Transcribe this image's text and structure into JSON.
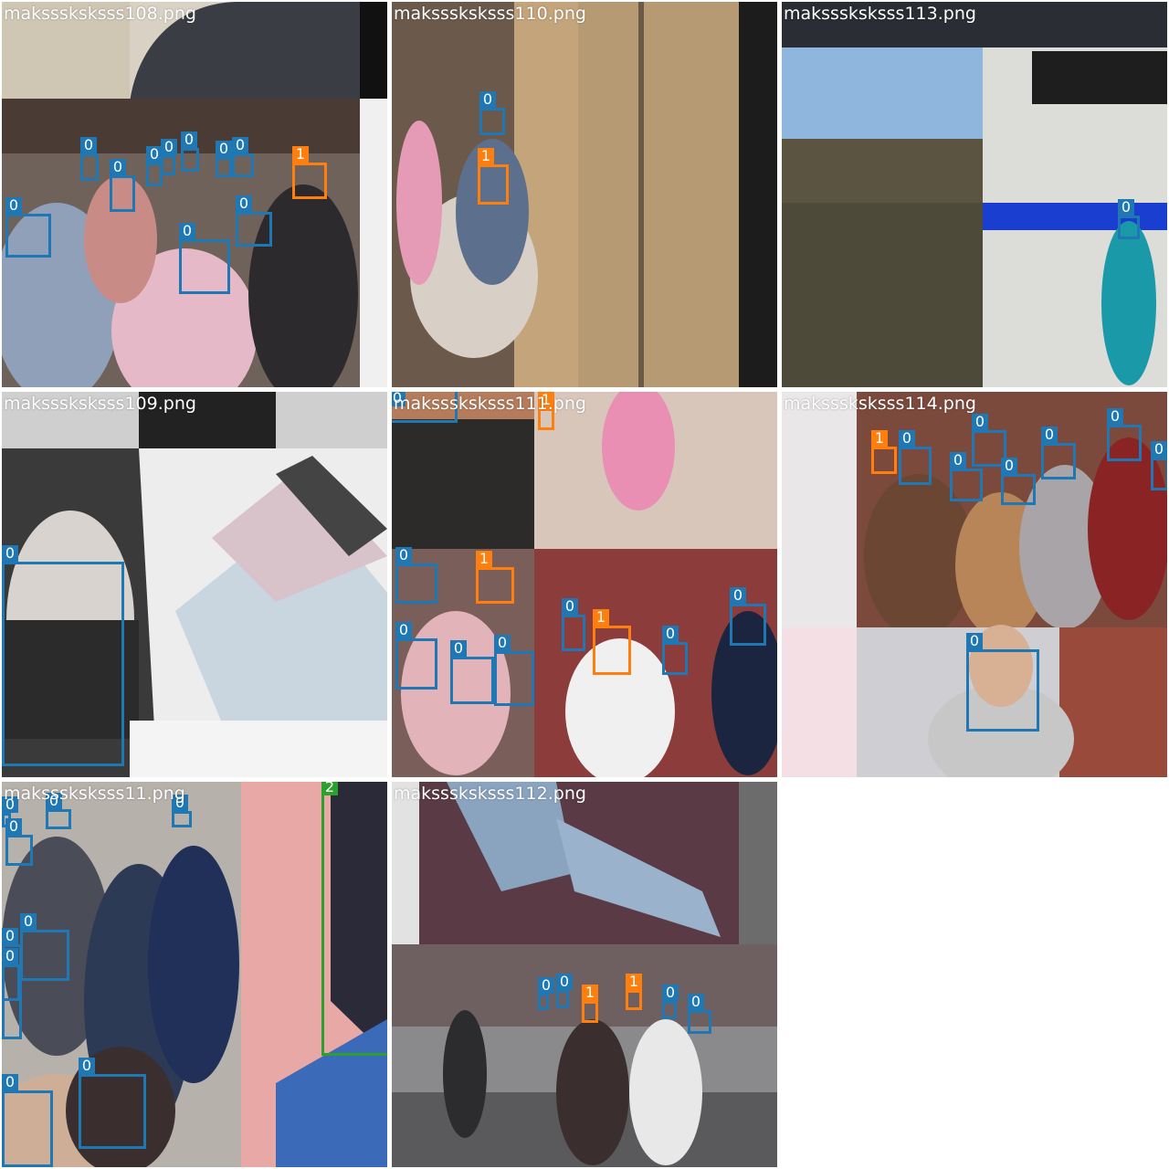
{
  "colors": {
    "class_0": "#1f77b4",
    "class_1": "#ff7f0e",
    "class_2": "#2ca02c"
  },
  "tiles": [
    {
      "filename": "maksssksksss108.png",
      "boxes": [
        {
          "cls": "0",
          "label": "0"
        },
        {
          "cls": "0",
          "label": "0"
        },
        {
          "cls": "0",
          "label": "0"
        },
        {
          "cls": "0",
          "label": "0"
        },
        {
          "cls": "0",
          "label": "0"
        },
        {
          "cls": "0",
          "label": "0"
        },
        {
          "cls": "0",
          "label": "0"
        },
        {
          "cls": "0",
          "label": "0"
        },
        {
          "cls": "0",
          "label": "0"
        },
        {
          "cls": "0",
          "label": "0"
        },
        {
          "cls": "1",
          "label": "1"
        }
      ]
    },
    {
      "filename": "maksssksksss110.png",
      "boxes": [
        {
          "cls": "0",
          "label": "0"
        },
        {
          "cls": "1",
          "label": "1"
        }
      ]
    },
    {
      "filename": "maksssksksss113.png",
      "boxes": [
        {
          "cls": "0",
          "label": "0"
        }
      ]
    },
    {
      "filename": "maksssksksss109.png",
      "boxes": [
        {
          "cls": "0",
          "label": "0"
        }
      ]
    },
    {
      "filename": "maksssksksss111.png",
      "boxes": [
        {
          "cls": "0",
          "label": "0"
        },
        {
          "cls": "1",
          "label": "1"
        },
        {
          "cls": "0",
          "label": "0"
        },
        {
          "cls": "1",
          "label": "1"
        },
        {
          "cls": "0",
          "label": "0"
        },
        {
          "cls": "0",
          "label": "0"
        },
        {
          "cls": "0",
          "label": "0"
        },
        {
          "cls": "0",
          "label": "0"
        },
        {
          "cls": "1",
          "label": "1"
        },
        {
          "cls": "0",
          "label": "0"
        },
        {
          "cls": "0",
          "label": "0"
        }
      ]
    },
    {
      "filename": "maksssksksss114.png",
      "boxes": [
        {
          "cls": "1",
          "label": "1"
        },
        {
          "cls": "0",
          "label": "0"
        },
        {
          "cls": "0",
          "label": "0"
        },
        {
          "cls": "0",
          "label": "0"
        },
        {
          "cls": "0",
          "label": "0"
        },
        {
          "cls": "0",
          "label": "0"
        },
        {
          "cls": "0",
          "label": "0"
        },
        {
          "cls": "0",
          "label": "0"
        },
        {
          "cls": "0",
          "label": "0"
        }
      ]
    },
    {
      "filename": "maksssksksss11.png",
      "boxes": [
        {
          "cls": "0",
          "label": "0"
        },
        {
          "cls": "0",
          "label": "0"
        },
        {
          "cls": "0",
          "label": "0"
        },
        {
          "cls": "0",
          "label": "0"
        },
        {
          "cls": "0",
          "label": "0"
        },
        {
          "cls": "0",
          "label": "0"
        },
        {
          "cls": "0",
          "label": "0"
        },
        {
          "cls": "0",
          "label": "0"
        },
        {
          "cls": "0",
          "label": "0"
        },
        {
          "cls": "2",
          "label": "2"
        }
      ]
    },
    {
      "filename": "maksssksksss112.png",
      "boxes": [
        {
          "cls": "0",
          "label": "0"
        },
        {
          "cls": "0",
          "label": "0"
        },
        {
          "cls": "1",
          "label": "1"
        },
        {
          "cls": "1",
          "label": "1"
        },
        {
          "cls": "0",
          "label": "0"
        },
        {
          "cls": "0",
          "label": "0"
        }
      ]
    }
  ]
}
